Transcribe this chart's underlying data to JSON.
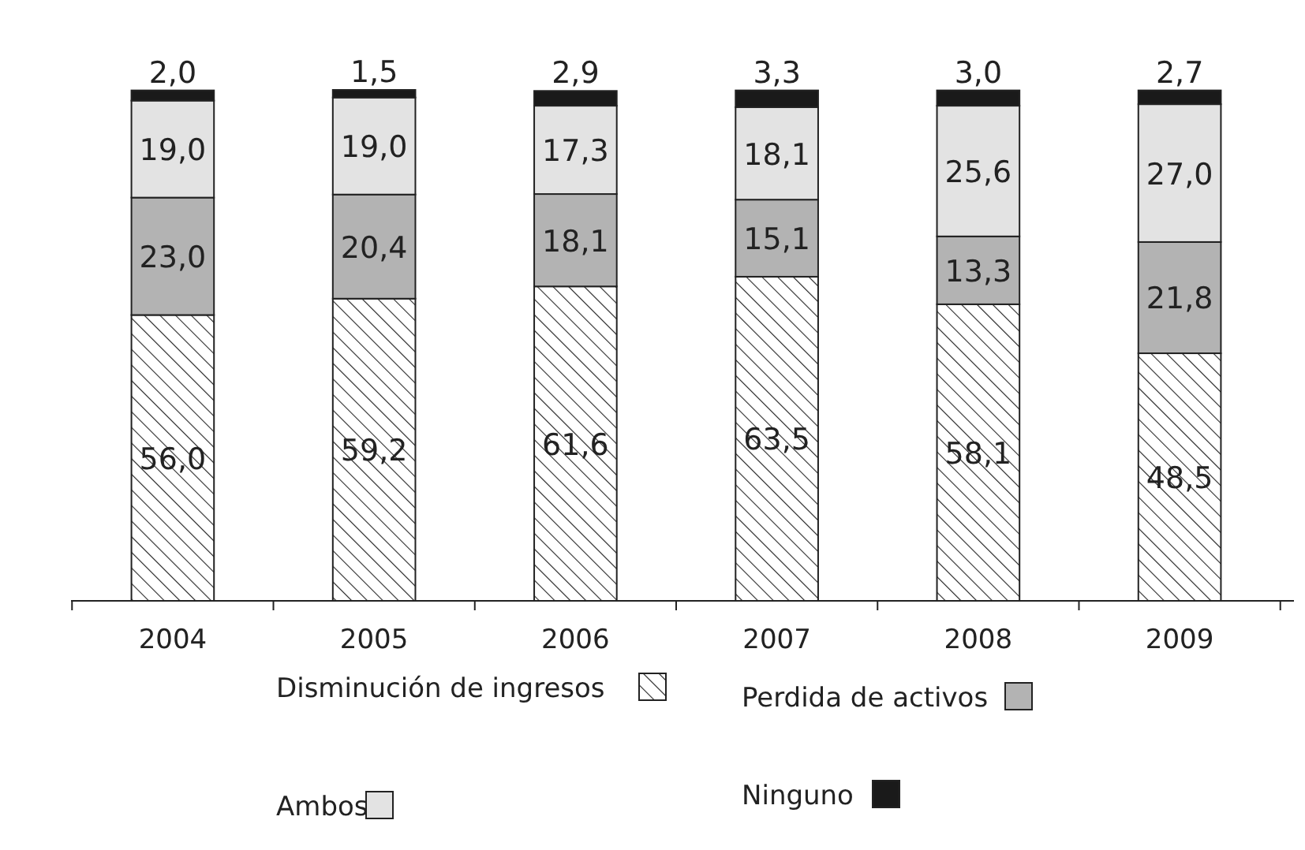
{
  "chart_data": {
    "type": "bar",
    "stacked": true,
    "legend": "bottom",
    "categories": [
      "2004",
      "2005",
      "2006",
      "2007",
      "2008",
      "2009"
    ],
    "series": [
      {
        "name": "Disminución de ingresos",
        "color": "#222222",
        "values": [
          56.0,
          59.2,
          61.6,
          63.5,
          58.1,
          48.5
        ],
        "value_labels": [
          "56,0",
          "59,2",
          "61,6",
          "63,5",
          "58,1",
          "48,5"
        ]
      },
      {
        "name": "Perdida de activos",
        "color": "#b3b3b3",
        "values": [
          23.0,
          20.4,
          18.1,
          15.1,
          13.3,
          21.8
        ],
        "value_labels": [
          "23,0",
          "20,4",
          "18,1",
          "15,1",
          "13,3",
          "21,8"
        ]
      },
      {
        "name": "Ambos",
        "color": "#e3e3e3",
        "values": [
          19.0,
          19.0,
          17.3,
          18.1,
          25.6,
          27.0
        ],
        "value_labels": [
          "19,0",
          "19,0",
          "17,3",
          "18,1",
          "25,6",
          "27,0"
        ]
      },
      {
        "name": "Ninguno",
        "color": "#1a1a1a",
        "values": [
          2.0,
          1.5,
          2.9,
          3.3,
          3.0,
          2.7
        ],
        "value_labels": [
          "2,0",
          "1,5",
          "2,9",
          "3,3",
          "3,0",
          "2,7"
        ]
      }
    ]
  }
}
